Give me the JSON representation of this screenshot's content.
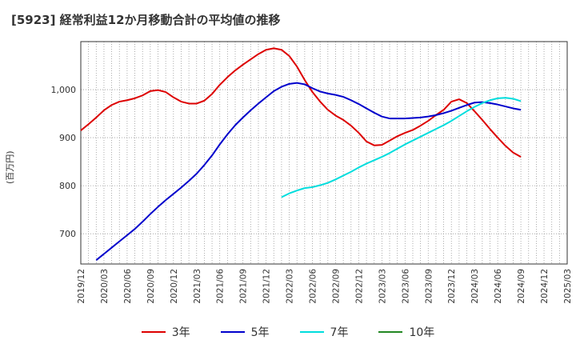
{
  "title": "[5923]  経常利益12か月移動合計の平均値の推移",
  "ylabel": "(百万円)",
  "chart_data": {
    "type": "line",
    "title": "[5923]  経常利益12か月移動合計の平均値の推移",
    "ylabel": "(百万円)",
    "xlabel": "",
    "ylim": [
      637,
      1100
    ],
    "yticks": [
      700,
      800,
      900,
      1000
    ],
    "ytick_labels": [
      "700",
      "800",
      "900",
      "1,000"
    ],
    "xticks": [
      "2019/12",
      "2020/03",
      "2020/06",
      "2020/09",
      "2020/12",
      "2021/03",
      "2021/06",
      "2021/09",
      "2021/12",
      "2022/03",
      "2022/06",
      "2022/09",
      "2022/12",
      "2023/03",
      "2023/06",
      "2023/09",
      "2023/12",
      "2024/03",
      "2024/06",
      "2024/09",
      "2024/12",
      "2025/03"
    ],
    "grid": true,
    "legend_position": "bottom",
    "series": [
      {
        "name": "3年",
        "color": "#dd0000",
        "start": "2019/12",
        "values": [
          915,
          928,
          942,
          957,
          968,
          975,
          978,
          982,
          988,
          997,
          999,
          995,
          984,
          975,
          971,
          971,
          977,
          991,
          1010,
          1026,
          1040,
          1052,
          1063,
          1074,
          1083,
          1086,
          1083,
          1070,
          1048,
          1020,
          995,
          975,
          958,
          946,
          937,
          925,
          910,
          892,
          884,
          885,
          894,
          903,
          910,
          916,
          925,
          935,
          947,
          958,
          975,
          980,
          972,
          955,
          937,
          918,
          900,
          883,
          869,
          860
        ]
      },
      {
        "name": "5年",
        "color": "#0000cc",
        "start": "2020/02",
        "values": [
          645,
          658,
          671,
          684,
          697,
          710,
          725,
          741,
          756,
          770,
          783,
          796,
          810,
          825,
          843,
          863,
          886,
          907,
          926,
          942,
          957,
          971,
          984,
          997,
          1006,
          1012,
          1014,
          1011,
          1003,
          996,
          992,
          989,
          985,
          978,
          970,
          961,
          952,
          944,
          940,
          940,
          940,
          941,
          942,
          944,
          947,
          951,
          956,
          962,
          968,
          973,
          974,
          972,
          969,
          965,
          961,
          958
        ]
      },
      {
        "name": "7年",
        "color": "#00dddd",
        "start": "2022/02",
        "values": [
          776,
          784,
          790,
          795,
          797,
          801,
          806,
          813,
          821,
          829,
          838,
          846,
          853,
          860,
          868,
          877,
          886,
          894,
          902,
          910,
          918,
          926,
          935,
          945,
          955,
          964,
          972,
          978,
          982,
          983,
          981,
          976
        ]
      },
      {
        "name": "10年",
        "color": "#228822",
        "start": "2019/12",
        "values": []
      }
    ]
  }
}
